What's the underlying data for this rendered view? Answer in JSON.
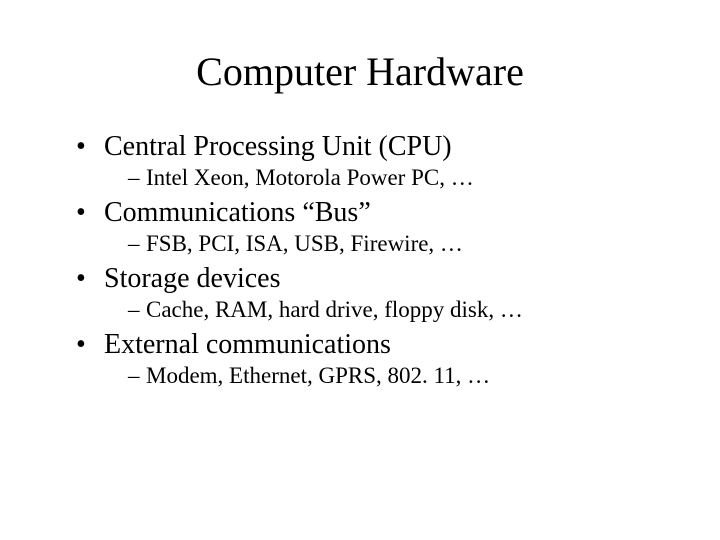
{
  "slide": {
    "title": "Computer Hardware",
    "title_fontsize": 40,
    "body_fontsize_l1": 28,
    "body_fontsize_l2": 23,
    "font_family": "Times New Roman",
    "background_color": "#ffffff",
    "text_color": "#000000",
    "items": [
      {
        "bullet": "•",
        "text": "Central Processing Unit (CPU)",
        "sub": {
          "dash": "–",
          "text": "Intel Xeon, Motorola Power PC, …"
        }
      },
      {
        "bullet": "•",
        "text": "Communications “Bus”",
        "sub": {
          "dash": "–",
          "text": "FSB, PCI, ISA, USB, Firewire, …"
        }
      },
      {
        "bullet": "•",
        "text": "Storage devices",
        "sub": {
          "dash": "–",
          "text": "Cache, RAM, hard drive, floppy disk, …"
        }
      },
      {
        "bullet": "•",
        "text": "External communications",
        "sub": {
          "dash": "–",
          "text": "Modem, Ethernet, GPRS, 802. 11, …"
        }
      }
    ]
  }
}
